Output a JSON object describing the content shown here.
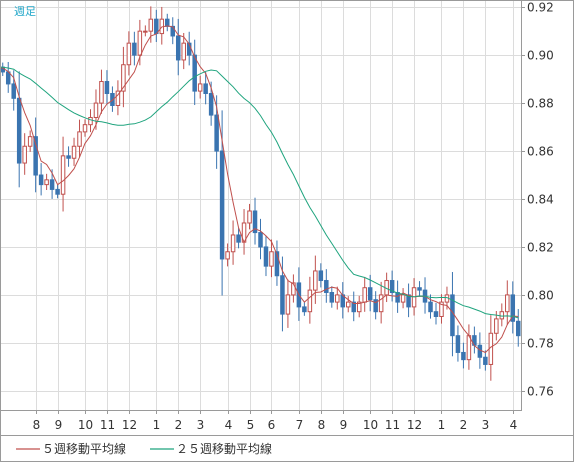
{
  "chart_data": {
    "type": "candlestick",
    "period_label": "週足",
    "y_ticks": [
      0.92,
      0.9,
      0.88,
      0.86,
      0.84,
      0.82,
      0.8,
      0.78,
      0.76
    ],
    "y_tick_labels": [
      "0.92",
      "0.90",
      "0.88",
      "0.86",
      "0.84",
      "0.82",
      "0.80",
      "0.78",
      "0.76"
    ],
    "ylim": [
      0.752,
      0.923
    ],
    "x_ticks": [
      {
        "index": 6,
        "label": "8"
      },
      {
        "index": 10,
        "label": "9"
      },
      {
        "index": 15,
        "label": "10"
      },
      {
        "index": 19,
        "label": "11"
      },
      {
        "index": 23,
        "label": "12"
      },
      {
        "index": 28,
        "label": "1"
      },
      {
        "index": 32,
        "label": "2"
      },
      {
        "index": 36,
        "label": "3"
      },
      {
        "index": 41,
        "label": "4"
      },
      {
        "index": 45,
        "label": "5"
      },
      {
        "index": 49,
        "label": "6"
      },
      {
        "index": 54,
        "label": "7"
      },
      {
        "index": 58,
        "label": "8"
      },
      {
        "index": 62,
        "label": "9"
      },
      {
        "index": 67,
        "label": "10"
      },
      {
        "index": 71,
        "label": "11"
      },
      {
        "index": 75,
        "label": "12"
      },
      {
        "index": 80,
        "label": "1"
      },
      {
        "index": 84,
        "label": "2"
      },
      {
        "index": 88,
        "label": "3"
      },
      {
        "index": 93,
        "label": "4"
      }
    ],
    "closes": [
      0.893,
      0.888,
      0.882,
      0.855,
      0.862,
      0.866,
      0.85,
      0.846,
      0.848,
      0.844,
      0.842,
      0.858,
      0.857,
      0.862,
      0.868,
      0.871,
      0.874,
      0.88,
      0.889,
      0.884,
      0.879,
      0.885,
      0.896,
      0.905,
      0.9,
      0.91,
      0.91,
      0.915,
      0.909,
      0.915,
      0.912,
      0.908,
      0.898,
      0.905,
      0.9,
      0.885,
      0.888,
      0.884,
      0.875,
      0.86,
      0.815,
      0.818,
      0.825,
      0.822,
      0.83,
      0.835,
      0.826,
      0.82,
      0.812,
      0.818,
      0.808,
      0.792,
      0.8,
      0.805,
      0.795,
      0.793,
      0.802,
      0.81,
      0.806,
      0.801,
      0.797,
      0.8,
      0.795,
      0.797,
      0.793,
      0.797,
      0.803,
      0.798,
      0.793,
      0.8,
      0.806,
      0.801,
      0.797,
      0.8,
      0.795,
      0.803,
      0.802,
      0.797,
      0.793,
      0.791,
      0.797,
      0.8,
      0.783,
      0.776,
      0.773,
      0.783,
      0.779,
      0.774,
      0.771,
      0.784,
      0.79,
      0.793,
      0.8,
      0.789,
      0.783
    ],
    "ma_start": 0.895,
    "series": [
      {
        "name": "５週移動平均線",
        "period": 5,
        "color": "#c0504d"
      },
      {
        "name": "２５週移動平均線",
        "period": 25,
        "color": "#1fa47e"
      }
    ],
    "up_color": "#c0504d",
    "down_color": "#3a74b0",
    "grid": true,
    "legend_position": "bottom-left"
  }
}
